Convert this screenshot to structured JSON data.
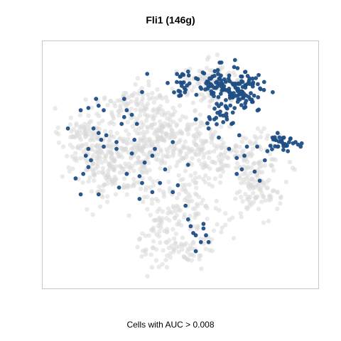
{
  "chart_data": {
    "type": "scatter",
    "title": "Fli1 (146g)",
    "caption": "Cells with AUC > 0.008",
    "xlabel": "",
    "ylabel": "",
    "grid": false,
    "legend": "none",
    "axes_visible": false,
    "xlim": [
      0,
      100
    ],
    "ylim": [
      0,
      100
    ],
    "colors": {
      "background_points": "#d9d9d9",
      "highlighted_points": "#1f4e85",
      "panel_border": "#c8c8c8"
    },
    "background_clusters": [
      {
        "cx": 13,
        "cy": 62,
        "rx": 9,
        "ry": 12,
        "n": 120
      },
      {
        "cx": 24,
        "cy": 48,
        "rx": 13,
        "ry": 14,
        "n": 150
      },
      {
        "cx": 41,
        "cy": 65,
        "rx": 13,
        "ry": 15,
        "n": 160
      },
      {
        "cx": 58,
        "cy": 58,
        "rx": 14,
        "ry": 14,
        "n": 150
      },
      {
        "cx": 50,
        "cy": 33,
        "rx": 15,
        "ry": 11,
        "n": 100
      },
      {
        "cx": 49,
        "cy": 16,
        "rx": 14,
        "ry": 11,
        "n": 110
      },
      {
        "cx": 62,
        "cy": 86,
        "rx": 12,
        "ry": 8,
        "n": 110
      },
      {
        "cx": 77,
        "cy": 52,
        "rx": 11,
        "ry": 11,
        "n": 100
      },
      {
        "cx": 80,
        "cy": 38,
        "rx": 8,
        "ry": 9,
        "n": 80
      },
      {
        "cx": 31,
        "cy": 78,
        "rx": 11,
        "ry": 6,
        "n": 60
      },
      {
        "cx": 34,
        "cy": 57,
        "rx": 13,
        "ry": 12,
        "n": 100
      }
    ],
    "highlighted_clusters": [
      {
        "cx": 73,
        "cy": 82,
        "rx": 10,
        "ry": 9,
        "n": 110
      },
      {
        "cx": 63,
        "cy": 85,
        "rx": 7,
        "ry": 6,
        "n": 45
      },
      {
        "cx": 50,
        "cy": 85,
        "rx": 4,
        "ry": 6,
        "n": 22
      },
      {
        "cx": 90,
        "cy": 60,
        "rx": 6,
        "ry": 3,
        "n": 30
      },
      {
        "cx": 66,
        "cy": 71,
        "rx": 6,
        "ry": 3,
        "n": 14
      }
    ],
    "highlighted_points": [
      [
        6,
        66
      ],
      [
        11,
        74
      ],
      [
        14,
        75
      ],
      [
        17,
        79
      ],
      [
        18,
        76
      ],
      [
        20,
        74
      ],
      [
        14,
        57
      ],
      [
        13,
        54
      ],
      [
        15,
        52
      ],
      [
        18,
        64
      ],
      [
        19,
        61
      ],
      [
        21,
        63
      ],
      [
        20,
        58
      ],
      [
        25,
        57
      ],
      [
        28,
        79
      ],
      [
        29,
        74
      ],
      [
        31,
        72
      ],
      [
        28,
        71
      ],
      [
        27,
        68
      ],
      [
        35,
        82
      ],
      [
        37,
        90
      ],
      [
        33,
        68
      ],
      [
        32,
        61
      ],
      [
        31,
        55
      ],
      [
        34,
        45
      ],
      [
        35,
        42
      ],
      [
        34,
        35
      ],
      [
        26,
        40
      ],
      [
        29,
        46
      ],
      [
        18,
        37
      ],
      [
        11,
        37
      ],
      [
        12,
        46
      ],
      [
        14,
        49
      ],
      [
        40,
        57
      ],
      [
        39,
        38
      ],
      [
        44,
        48
      ],
      [
        47,
        60
      ],
      [
        49,
        41
      ],
      [
        53,
        50
      ],
      [
        56,
        70
      ],
      [
        61,
        66
      ],
      [
        65,
        62
      ],
      [
        69,
        57
      ],
      [
        72,
        53
      ],
      [
        74,
        48
      ],
      [
        75,
        54
      ],
      [
        76,
        58
      ],
      [
        72,
        46
      ],
      [
        79,
        47
      ],
      [
        81,
        43
      ],
      [
        83,
        52
      ],
      [
        84,
        56
      ],
      [
        86,
        62
      ],
      [
        80,
        58
      ],
      [
        73,
        63
      ],
      [
        70,
        68
      ],
      [
        52,
        32
      ],
      [
        53,
        26
      ],
      [
        54,
        23
      ],
      [
        55,
        20
      ],
      [
        56,
        19
      ],
      [
        59,
        22
      ],
      [
        60,
        19
      ],
      [
        58,
        16
      ],
      [
        61,
        16
      ],
      [
        59,
        24
      ],
      [
        56,
        12
      ],
      [
        47,
        38
      ],
      [
        42,
        42
      ],
      [
        39,
        54
      ],
      [
        36,
        51
      ],
      [
        25,
        60
      ],
      [
        9,
        44
      ],
      [
        16,
        66
      ],
      [
        45,
        86
      ],
      [
        53,
        91
      ],
      [
        71,
        93
      ],
      [
        66,
        95
      ],
      [
        77,
        88
      ],
      [
        88,
        64
      ],
      [
        92,
        56
      ],
      [
        95,
        60
      ],
      [
        97,
        58
      ],
      [
        88,
        58
      ]
    ]
  }
}
